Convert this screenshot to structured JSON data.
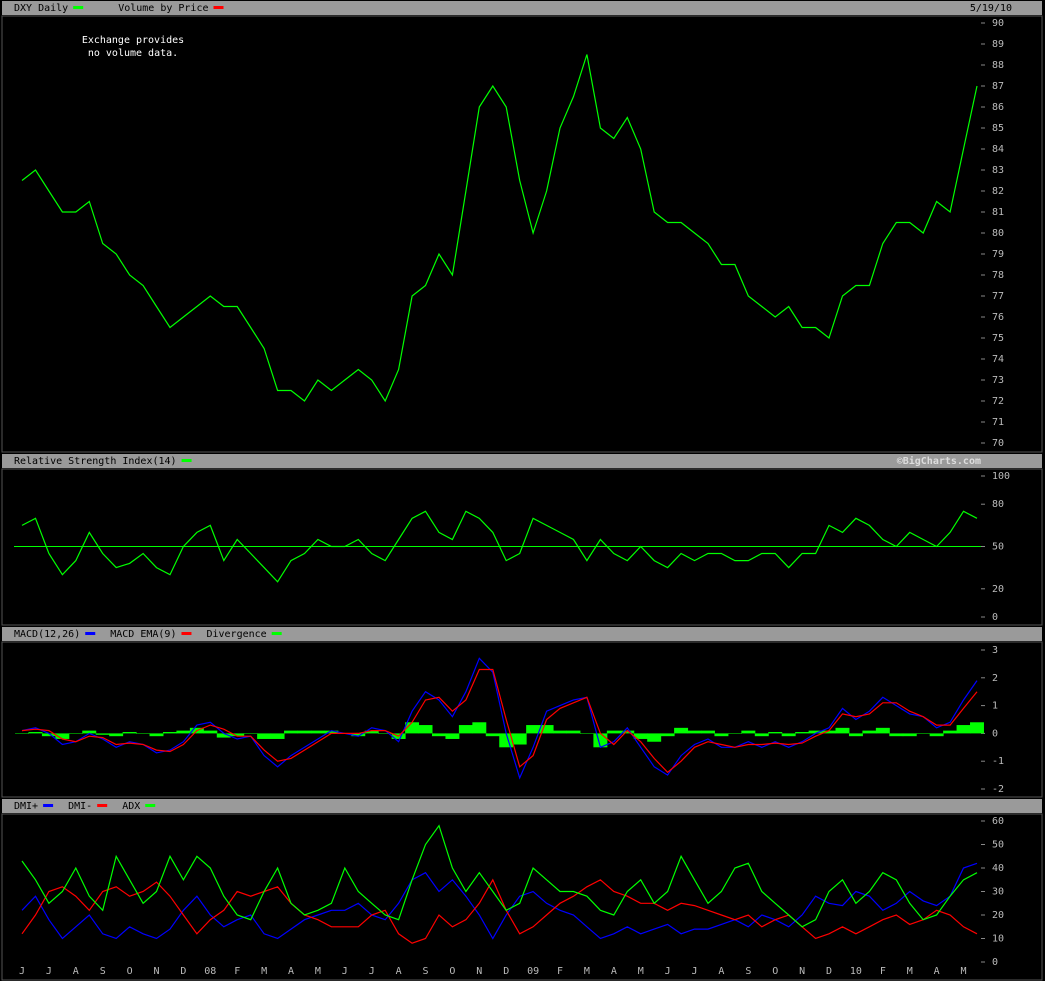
{
  "chart_data": [
    {
      "type": "line",
      "date": "5/19/10",
      "annotation": [
        "Exchange provides",
        "no volume data."
      ],
      "series": [
        {
          "name": "DXY Daily",
          "color": "#00ff00",
          "values": [
            82.5,
            83,
            82,
            81,
            81,
            81.5,
            79.5,
            79,
            78,
            77.5,
            76.5,
            75.5,
            76,
            76.5,
            77,
            76.5,
            76.5,
            75.5,
            74.5,
            72.5,
            72.5,
            72,
            73,
            72.5,
            73,
            73.5,
            73,
            72,
            73.5,
            77,
            77.5,
            79,
            78,
            82,
            86,
            87,
            86,
            82.5,
            80,
            82,
            85,
            86.5,
            88.5,
            85,
            84.5,
            85.5,
            84,
            81,
            80.5,
            80.5,
            80,
            79.5,
            78.5,
            78.5,
            77,
            76.5,
            76,
            76.5,
            75.5,
            75.5,
            75,
            77,
            77.5,
            77.5,
            79.5,
            80.5,
            80.5,
            80,
            81.5,
            81,
            84,
            87
          ]
        }
      ],
      "overlays": [
        {
          "name": "Volume by Price",
          "color": "#ff0000"
        }
      ],
      "ylim": [
        70,
        90
      ],
      "yticks": [
        70,
        71,
        72,
        73,
        74,
        75,
        76,
        77,
        78,
        79,
        80,
        81,
        82,
        83,
        84,
        85,
        86,
        87,
        88,
        89,
        90
      ]
    },
    {
      "type": "line",
      "source": "©BigCharts.com",
      "reference_line": 50,
      "series": [
        {
          "name": "Relative Strength Index(14)",
          "color": "#00ff00",
          "values": [
            65,
            70,
            45,
            30,
            40,
            60,
            45,
            35,
            38,
            45,
            35,
            30,
            50,
            60,
            65,
            40,
            55,
            45,
            35,
            25,
            40,
            45,
            55,
            50,
            50,
            55,
            45,
            40,
            55,
            70,
            75,
            60,
            55,
            75,
            70,
            60,
            40,
            45,
            70,
            65,
            60,
            55,
            40,
            55,
            45,
            40,
            50,
            40,
            35,
            45,
            40,
            45,
            45,
            40,
            40,
            45,
            45,
            35,
            45,
            45,
            65,
            60,
            70,
            65,
            55,
            50,
            60,
            55,
            50,
            60,
            75,
            70
          ]
        }
      ],
      "ylim": [
        0,
        100
      ],
      "yticks": [
        0,
        20,
        50,
        80,
        100
      ]
    },
    {
      "type": "line",
      "series": [
        {
          "name": "MACD(12,26)",
          "color": "#0000ff",
          "values": [
            0.1,
            0.2,
            0,
            -0.4,
            -0.3,
            0,
            -0.2,
            -0.5,
            -0.3,
            -0.4,
            -0.7,
            -0.6,
            -0.3,
            0.3,
            0.4,
            0,
            -0.2,
            -0.1,
            -0.8,
            -1.2,
            -0.8,
            -0.5,
            -0.2,
            0.1,
            0,
            -0.1,
            0.2,
            0.1,
            -0.3,
            0.8,
            1.5,
            1.2,
            0.6,
            1.5,
            2.7,
            2.2,
            0,
            -1.6,
            -0.5,
            0.8,
            1.0,
            1.2,
            1.3,
            -0.5,
            -0.3,
            0.2,
            -0.5,
            -1.2,
            -1.5,
            -0.8,
            -0.4,
            -0.2,
            -0.5,
            -0.5,
            -0.3,
            -0.5,
            -0.3,
            -0.5,
            -0.3,
            0,
            0.2,
            0.9,
            0.5,
            0.8,
            1.3,
            1.0,
            0.7,
            0.6,
            0.2,
            0.4,
            1.2,
            1.9
          ]
        },
        {
          "name": "MACD EMA(9)",
          "color": "#ff0000",
          "values": [
            0.1,
            0.15,
            0.1,
            -0.2,
            -0.3,
            -0.1,
            -0.15,
            -0.4,
            -0.35,
            -0.4,
            -0.6,
            -0.65,
            -0.4,
            0.1,
            0.3,
            0.15,
            -0.1,
            -0.1,
            -0.6,
            -1.0,
            -0.9,
            -0.6,
            -0.3,
            0,
            0,
            0,
            0.1,
            0.1,
            -0.1,
            0.4,
            1.2,
            1.3,
            0.8,
            1.2,
            2.3,
            2.3,
            0.5,
            -1.2,
            -0.8,
            0.5,
            0.9,
            1.1,
            1.3,
            0,
            -0.4,
            0.1,
            -0.3,
            -0.9,
            -1.4,
            -1.0,
            -0.5,
            -0.3,
            -0.4,
            -0.5,
            -0.4,
            -0.4,
            -0.35,
            -0.4,
            -0.35,
            -0.1,
            0.1,
            0.7,
            0.6,
            0.7,
            1.1,
            1.1,
            0.8,
            0.6,
            0.3,
            0.3,
            0.9,
            1.5
          ]
        },
        {
          "name": "Divergence",
          "color": "#00ff00",
          "type": "bar",
          "values": [
            0,
            0.05,
            -0.1,
            -0.2,
            0,
            0.1,
            -0.05,
            -0.1,
            0.05,
            0,
            -0.1,
            0.05,
            0.1,
            0.2,
            0.1,
            -0.15,
            -0.1,
            0,
            -0.2,
            -0.2,
            0.1,
            0.1,
            0.1,
            0.1,
            0,
            -0.1,
            0.1,
            0,
            -0.2,
            0.4,
            0.3,
            -0.1,
            -0.2,
            0.3,
            0.4,
            -0.1,
            -0.5,
            -0.4,
            0.3,
            0.3,
            0.1,
            0.1,
            0,
            -0.5,
            0.1,
            0.1,
            -0.2,
            -0.3,
            -0.1,
            0.2,
            0.1,
            0.1,
            -0.1,
            0,
            0.1,
            -0.1,
            0.05,
            -0.1,
            0.05,
            0.1,
            0.1,
            0.2,
            -0.1,
            0.1,
            0.2,
            -0.1,
            -0.1,
            0,
            -0.1,
            0.1,
            0.3,
            0.4
          ]
        }
      ],
      "ylim": [
        -2,
        3
      ],
      "yticks": [
        -2,
        -1,
        0,
        1,
        2,
        3
      ]
    },
    {
      "type": "line",
      "categories": [
        "J",
        null,
        "J",
        null,
        "A",
        null,
        "S",
        null,
        "O",
        null,
        "N",
        null,
        "D",
        null,
        "08",
        null,
        "F",
        null,
        "M",
        null,
        "A",
        null,
        "M",
        null,
        "J",
        null,
        "J",
        null,
        "A",
        null,
        "S",
        null,
        "O",
        null,
        "N",
        null,
        "D",
        null,
        "09",
        null,
        "F",
        null,
        "M",
        null,
        "A",
        null,
        "M",
        null,
        "J",
        null,
        "J",
        null,
        "A",
        null,
        "S",
        null,
        "O",
        null,
        "N",
        null,
        "D",
        null,
        "10",
        null,
        "F",
        null,
        "M",
        null,
        "A",
        null,
        "M",
        null
      ],
      "series": [
        {
          "name": "DMI+",
          "color": "#0000ff",
          "values": [
            22,
            28,
            18,
            10,
            15,
            20,
            12,
            10,
            15,
            12,
            10,
            14,
            22,
            28,
            20,
            15,
            18,
            20,
            12,
            10,
            14,
            18,
            20,
            22,
            22,
            25,
            20,
            18,
            25,
            35,
            38,
            30,
            35,
            28,
            20,
            10,
            20,
            28,
            30,
            25,
            22,
            20,
            15,
            10,
            12,
            15,
            12,
            14,
            16,
            12,
            14,
            14,
            16,
            18,
            15,
            20,
            18,
            15,
            20,
            28,
            25,
            24,
            30,
            28,
            22,
            25,
            30,
            26,
            24,
            28,
            40,
            42
          ]
        },
        {
          "name": "DMI-",
          "color": "#ff0000",
          "values": [
            12,
            20,
            30,
            32,
            28,
            22,
            30,
            32,
            28,
            30,
            34,
            28,
            20,
            12,
            18,
            22,
            30,
            28,
            30,
            32,
            25,
            20,
            18,
            15,
            15,
            15,
            20,
            22,
            12,
            8,
            10,
            20,
            15,
            18,
            25,
            35,
            22,
            12,
            15,
            20,
            25,
            28,
            32,
            35,
            30,
            28,
            25,
            25,
            22,
            25,
            24,
            22,
            20,
            18,
            20,
            15,
            18,
            20,
            15,
            10,
            12,
            15,
            12,
            15,
            18,
            20,
            16,
            18,
            22,
            20,
            15,
            12
          ]
        },
        {
          "name": "ADX",
          "color": "#00ff00",
          "values": [
            43,
            35,
            25,
            30,
            40,
            28,
            22,
            45,
            35,
            25,
            30,
            45,
            35,
            45,
            40,
            28,
            20,
            18,
            30,
            40,
            25,
            20,
            22,
            25,
            40,
            30,
            25,
            20,
            18,
            35,
            50,
            58,
            40,
            30,
            38,
            30,
            22,
            25,
            40,
            35,
            30,
            30,
            28,
            22,
            20,
            30,
            35,
            25,
            30,
            45,
            35,
            25,
            30,
            40,
            42,
            30,
            25,
            20,
            15,
            18,
            30,
            35,
            25,
            30,
            38,
            35,
            25,
            18,
            20,
            28,
            35,
            38
          ]
        }
      ],
      "ylim": [
        0,
        60
      ],
      "yticks": [
        0,
        10,
        20,
        30,
        40,
        50,
        60
      ]
    }
  ]
}
